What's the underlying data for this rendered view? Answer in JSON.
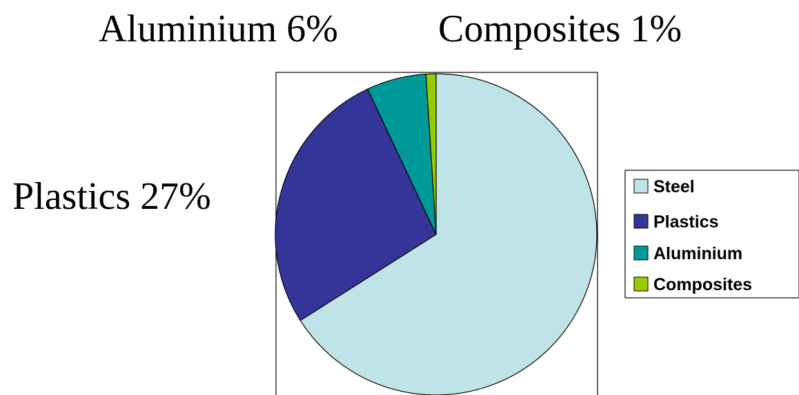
{
  "chart_data": {
    "type": "pie",
    "title": "",
    "slices": [
      {
        "name": "Steel",
        "value": 66,
        "color": "#bfe3e6"
      },
      {
        "name": "Plastics",
        "value": 27,
        "color": "#353599"
      },
      {
        "name": "Aluminium",
        "value": 6,
        "color": "#009999"
      },
      {
        "name": "Composites",
        "value": 1,
        "color": "#99cc00"
      }
    ],
    "slice_labels": [
      {
        "series": "Aluminium",
        "text": "Aluminium 6%"
      },
      {
        "series": "Composites",
        "text": "Composites 1%"
      },
      {
        "series": "Plastics",
        "text": "Plastics 27%"
      }
    ],
    "legend": {
      "placement": "right",
      "items": [
        "Steel",
        "Plastics",
        "Aluminium",
        "Composites"
      ]
    },
    "start_angle_deg": 0,
    "direction": "clockwise"
  }
}
